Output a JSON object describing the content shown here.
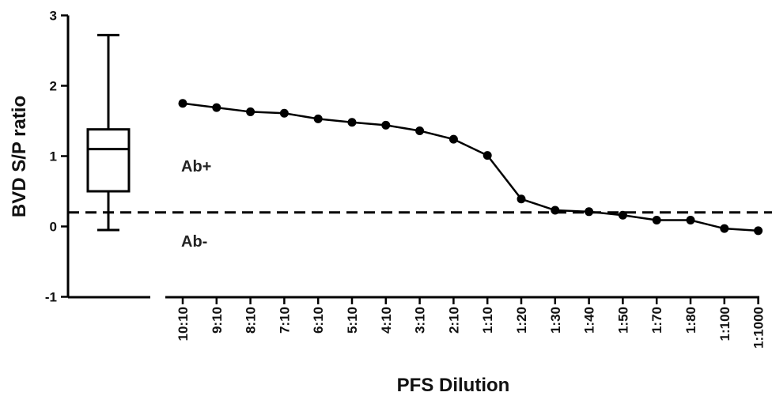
{
  "chart_data": {
    "type": "line",
    "title": "",
    "xlabel": "PFS Dilution",
    "ylabel": "BVD S/P ratio",
    "ylim": [
      -1,
      3
    ],
    "yticks": [
      3,
      2,
      1,
      0,
      -1
    ],
    "grid": false,
    "categories": [
      "10:10",
      "9:10",
      "8:10",
      "7:10",
      "6:10",
      "5:10",
      "4:10",
      "3:10",
      "2:10",
      "1:10",
      "1:20",
      "1:30",
      "1:40",
      "1:50",
      "1:70",
      "1:80",
      "1:100",
      "1:1000"
    ],
    "series": [
      {
        "values": [
          1.75,
          1.69,
          1.63,
          1.61,
          1.53,
          1.48,
          1.44,
          1.36,
          1.24,
          1.01,
          0.39,
          0.23,
          0.21,
          0.16,
          0.09,
          0.09,
          -0.03,
          -0.06
        ]
      }
    ],
    "boxplot": {
      "min": -0.05,
      "q1": 0.5,
      "median": 1.1,
      "q3": 1.38,
      "max": 2.72
    },
    "cutoff": 0.2,
    "annotations": [
      "Ab+",
      "Ab-"
    ]
  }
}
